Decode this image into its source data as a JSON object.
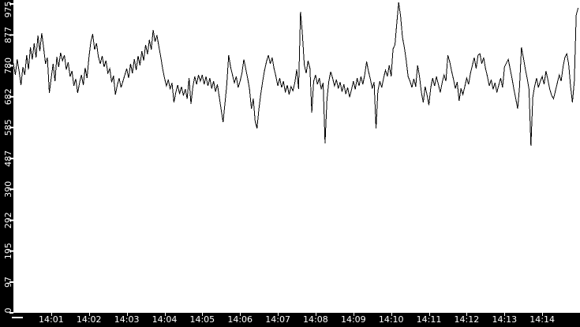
{
  "chart_data": {
    "type": "line",
    "title": "",
    "xlabel": "",
    "ylabel": "",
    "grid": false,
    "legend": "none",
    "colors": {
      "plot_background": "#ffffff",
      "axis_background": "#000000",
      "axis_foreground": "#ffffff",
      "line": "#000000"
    },
    "x_axis": {
      "range_minutes": [
        0,
        15
      ],
      "tick_minutes": [
        1,
        2,
        3,
        4,
        5,
        6,
        7,
        8,
        9,
        10,
        11,
        12,
        13,
        14
      ],
      "tick_labels": [
        "14:01",
        "14:02",
        "14:03",
        "14:04",
        "14:05",
        "14:06",
        "14:07",
        "14:08",
        "14:09",
        "14:10",
        "14:11",
        "14:12",
        "14:13",
        "14:14"
      ]
    },
    "y_axis": {
      "range": [
        0,
        975
      ],
      "tick_values": [
        0,
        97,
        195,
        292,
        390,
        487,
        585,
        682,
        780,
        877,
        975
      ],
      "tick_labels": [
        "0",
        "97",
        "195",
        "292",
        "390",
        "487",
        "585",
        "682",
        "780",
        "877",
        "975"
      ]
    },
    "series": [
      {
        "name": "value",
        "t_start_minutes": 0,
        "t_step_minutes": 0.05,
        "values": [
          788,
          751,
          800,
          763,
          719,
          776,
          751,
          813,
          768,
          838,
          800,
          850,
          806,
          875,
          826,
          883,
          836,
          786,
          806,
          694,
          741,
          786,
          731,
          808,
          776,
          821,
          796,
          813,
          768,
          791,
          746,
          763,
          716,
          739,
          694,
          726,
          751,
          719,
          773,
          741,
          806,
          855,
          880,
          831,
          851,
          808,
          786,
          811,
          776,
          796,
          756,
          771,
          728,
          748,
          689,
          718,
          741,
          711,
          731,
          751,
          771,
          741,
          786,
          756,
          801,
          766,
          811,
          781,
          826,
          796,
          846,
          816,
          861,
          831,
          893,
          856,
          876,
          841,
          808,
          771,
          741,
          716,
          736,
          706,
          726,
          664,
          696,
          719,
          691,
          714,
          686,
          706,
          676,
          741,
          659,
          713,
          746,
          721,
          751,
          731,
          751,
          721,
          746,
          716,
          741,
          708,
          731,
          698,
          721,
          681,
          641,
          602,
          661,
          721,
          813,
          776,
          751,
          726,
          746,
          711,
          731,
          756,
          800,
          771,
          741,
          706,
          644,
          676,
          606,
          582,
          644,
          691,
          731,
          766,
          793,
          813,
          786,
          806,
          771,
          746,
          716,
          741,
          711,
          731,
          696,
          719,
          689,
          714,
          701,
          726,
          768,
          706,
          950,
          881,
          783,
          756,
          796,
          771,
          632,
          731,
          751,
          721,
          741,
          706,
          726,
          535,
          671,
          731,
          761,
          741,
          716,
          736,
          708,
          728,
          698,
          721,
          691,
          711,
          681,
          704,
          731,
          706,
          741,
          716,
          746,
          721,
          751,
          793,
          763,
          738,
          708,
          728,
          582,
          701,
          731,
          711,
          741,
          766,
          746,
          781,
          747,
          833,
          846,
          913,
          980,
          938,
          870,
          838,
          796,
          746,
          731,
          711,
          739,
          714,
          781,
          746,
          696,
          664,
          714,
          689,
          656,
          711,
          741,
          716,
          746,
          721,
          696,
          726,
          751,
          731,
          813,
          793,
          763,
          738,
          708,
          728,
          669,
          708,
          689,
          714,
          741,
          721,
          756,
          781,
          806,
          771,
          813,
          818,
          786,
          806,
          771,
          746,
          716,
          736,
          706,
          726,
          696,
          719,
          741,
          711,
          776,
          788,
          800,
          771,
          741,
          706,
          676,
          644,
          714,
          838,
          806,
          771,
          741,
          706,
          527,
          681,
          716,
          741,
          711,
          731,
          746,
          721,
          763,
          736,
          706,
          686,
          676,
          701,
          726,
          751,
          731,
          776,
          806,
          818,
          786,
          716,
          664,
          731,
          940,
          962
        ]
      }
    ]
  }
}
